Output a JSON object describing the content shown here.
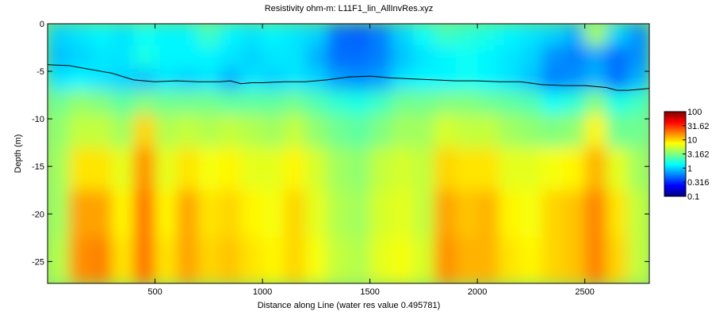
{
  "chart_data": {
    "type": "heatmap",
    "title": "Resistivity ohm-m: L11F1_lin_AllInvRes.xyz",
    "xlabel": "Distance along Line (water res value 0.495781)",
    "ylabel": "Depth (m)",
    "xlim": [
      0,
      2800
    ],
    "ylim": [
      -27.3,
      0
    ],
    "xticks": [
      500,
      1000,
      1500,
      2000,
      2500
    ],
    "yticks": [
      0,
      -5,
      -10,
      -15,
      -20,
      -25
    ],
    "colormap": "jet",
    "color_scale": "log",
    "clim": [
      0.1,
      100
    ],
    "colorbar_ticks": [
      "100",
      "31.62",
      "10",
      "3.162",
      "1",
      "0.316",
      "0.1"
    ],
    "colorbar_tick_values": [
      100,
      31.62,
      10,
      3.162,
      1,
      0.316,
      0.1
    ],
    "grid": false,
    "cells": {
      "x_centers": [
        50,
        150,
        250,
        350,
        450,
        550,
        650,
        750,
        850,
        950,
        1050,
        1150,
        1250,
        1350,
        1450,
        1550,
        1650,
        1750,
        1850,
        1950,
        2050,
        2150,
        2250,
        2350,
        2450,
        2550,
        2650,
        2750
      ],
      "depth_centers": [
        -1,
        -3.5,
        -6,
        -8,
        -11,
        -15,
        -20,
        -25
      ],
      "log10_resistivity": [
        [
          0.0,
          0.05,
          0.1,
          0.05,
          0.15,
          0.1,
          0.1,
          0.3,
          0.1,
          0.05,
          0.1,
          0.05,
          0.0,
          -0.3,
          -0.35,
          -0.25,
          0.0,
          0.15,
          0.3,
          0.25,
          0.2,
          0.1,
          0.05,
          0.0,
          -0.1,
          0.6,
          0.0,
          -0.2
        ],
        [
          -0.05,
          0.0,
          0.05,
          0.05,
          0.2,
          0.1,
          0.1,
          0.1,
          0.05,
          0.0,
          0.05,
          0.05,
          -0.1,
          -0.3,
          -0.3,
          -0.25,
          -0.05,
          0.05,
          0.1,
          0.15,
          0.1,
          0.05,
          0.0,
          -0.2,
          -0.25,
          -0.15,
          -0.3,
          -0.2
        ],
        [
          0.05,
          0.1,
          0.05,
          0.0,
          -0.05,
          0.05,
          0.0,
          0.05,
          -0.1,
          0.05,
          0.0,
          0.05,
          0.0,
          -0.15,
          -0.2,
          -0.15,
          0.05,
          0.1,
          0.1,
          0.15,
          0.1,
          0.05,
          -0.05,
          -0.25,
          -0.2,
          -0.1,
          -0.3,
          -0.1
        ],
        [
          0.45,
          0.55,
          0.5,
          0.4,
          0.5,
          0.45,
          0.45,
          0.45,
          0.4,
          0.4,
          0.4,
          0.45,
          0.35,
          0.25,
          0.2,
          0.3,
          0.45,
          0.45,
          0.5,
          0.5,
          0.45,
          0.4,
          0.35,
          0.15,
          0.25,
          0.5,
          0.2,
          0.3
        ],
        [
          0.55,
          0.7,
          0.7,
          0.6,
          1.0,
          0.65,
          0.7,
          0.65,
          0.7,
          0.65,
          0.6,
          0.7,
          0.55,
          0.45,
          0.4,
          0.5,
          0.6,
          0.6,
          0.75,
          0.7,
          0.7,
          0.6,
          0.55,
          0.5,
          0.55,
          0.9,
          0.45,
          0.45
        ],
        [
          0.6,
          0.95,
          0.95,
          0.8,
          1.2,
          0.8,
          0.95,
          0.85,
          0.9,
          0.8,
          0.8,
          0.9,
          0.75,
          0.6,
          0.55,
          0.7,
          0.75,
          0.7,
          1.0,
          0.95,
          0.95,
          0.8,
          0.8,
          0.85,
          0.9,
          1.1,
          0.8,
          0.6
        ],
        [
          0.6,
          1.15,
          1.15,
          0.9,
          1.3,
          0.9,
          1.15,
          0.95,
          1.0,
          0.9,
          0.85,
          1.0,
          0.8,
          0.65,
          0.6,
          0.75,
          0.8,
          0.7,
          1.15,
          1.05,
          1.1,
          0.9,
          0.85,
          1.0,
          1.05,
          1.25,
          0.95,
          0.7
        ],
        [
          0.65,
          1.2,
          1.25,
          0.95,
          1.3,
          0.95,
          1.15,
          1.0,
          1.05,
          0.95,
          0.9,
          1.0,
          0.85,
          0.7,
          0.65,
          0.8,
          0.85,
          0.75,
          1.2,
          1.1,
          1.1,
          0.95,
          0.9,
          1.0,
          1.05,
          1.25,
          1.0,
          0.7
        ]
      ]
    },
    "interface_line": {
      "x": [
        0,
        100,
        200,
        300,
        400,
        450,
        500,
        600,
        700,
        800,
        850,
        900,
        950,
        1000,
        1100,
        1200,
        1300,
        1400,
        1500,
        1600,
        1700,
        1800,
        1900,
        2000,
        2100,
        2200,
        2300,
        2400,
        2500,
        2600,
        2650,
        2700,
        2800
      ],
      "depth": [
        -4.3,
        -4.4,
        -4.8,
        -5.2,
        -5.9,
        -6.0,
        -6.1,
        -6.0,
        -6.1,
        -6.1,
        -6.0,
        -6.3,
        -6.2,
        -6.2,
        -6.1,
        -6.1,
        -5.9,
        -5.6,
        -5.5,
        -5.7,
        -5.8,
        -5.9,
        -6.0,
        -6.0,
        -6.1,
        -6.1,
        -6.4,
        -6.5,
        -6.5,
        -6.7,
        -7.0,
        -7.0,
        -6.8
      ],
      "color": "#000000"
    }
  }
}
